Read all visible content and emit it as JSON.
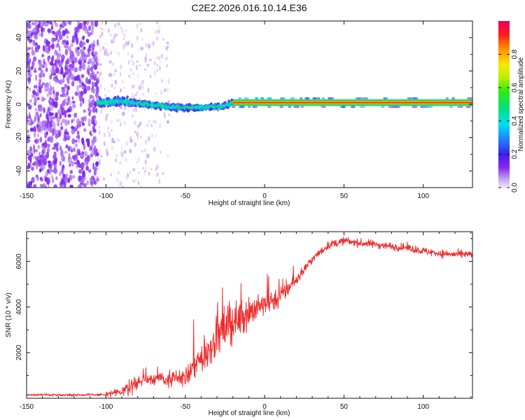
{
  "title": "C2E2.2026.016.10.14.E36",
  "chart_data": [
    {
      "type": "heatmap",
      "xlabel": "Height of straight line (km)",
      "ylabel": "Frequency (Hz)",
      "xlim": [
        -150,
        131
      ],
      "ylim": [
        -50,
        50
      ],
      "xticks": [
        -150,
        -100,
        -50,
        0,
        50,
        100
      ],
      "yticks": [
        -40,
        -20,
        0,
        20,
        40
      ],
      "colorbar": {
        "label": "Normalized spectral amplitude",
        "range": [
          0,
          1
        ],
        "ticks": [
          "0.0",
          "0.2",
          "0.4",
          "0.6",
          "0.8"
        ]
      },
      "features": [
        {
          "name": "broadband noise",
          "x_range": [
            -150,
            -105
          ],
          "freq_range": [
            -50,
            50
          ],
          "amplitude": 0.1
        },
        {
          "name": "scattered noise",
          "x_range": [
            -105,
            -60
          ],
          "freq_range": [
            -50,
            50
          ],
          "amplitude": 0.04
        },
        {
          "name": "tone track",
          "points": [
            [
              -105,
              1
            ],
            [
              -90,
              2
            ],
            [
              -75,
              0
            ],
            [
              -55,
              -2
            ],
            [
              -40,
              -2
            ],
            [
              -25,
              -1
            ],
            [
              -20,
              1
            ],
            [
              0,
              1
            ],
            [
              50,
              1
            ],
            [
              100,
              1
            ],
            [
              131,
              1
            ]
          ],
          "amplitude_before_km": -20,
          "amplitude_before": 0.45,
          "amplitude_after": 0.9
        }
      ]
    },
    {
      "type": "line",
      "xlabel": "Height of straight line (km)",
      "ylabel": "SNR (10 * v/v)",
      "xlim": [
        -150,
        131
      ],
      "ylim": [
        0,
        7300
      ],
      "xticks": [
        -150,
        -100,
        -50,
        0,
        50,
        100
      ],
      "yticks": [
        2000,
        4000,
        6000
      ],
      "series": [
        {
          "name": "SNR",
          "color": "#ee2c2c",
          "x": [
            -150,
            -120,
            -100,
            -90,
            -80,
            -70,
            -60,
            -50,
            -40,
            -30,
            -20,
            -10,
            0,
            10,
            20,
            30,
            40,
            50,
            60,
            70,
            80,
            90,
            100,
            110,
            120,
            131
          ],
          "values": [
            150,
            150,
            160,
            280,
            700,
            900,
            800,
            900,
            1700,
            2700,
            3300,
            3800,
            4100,
            4500,
            5200,
            6100,
            6700,
            6900,
            6800,
            6750,
            6650,
            6600,
            6450,
            6350,
            6300,
            6300
          ]
        }
      ]
    }
  ]
}
